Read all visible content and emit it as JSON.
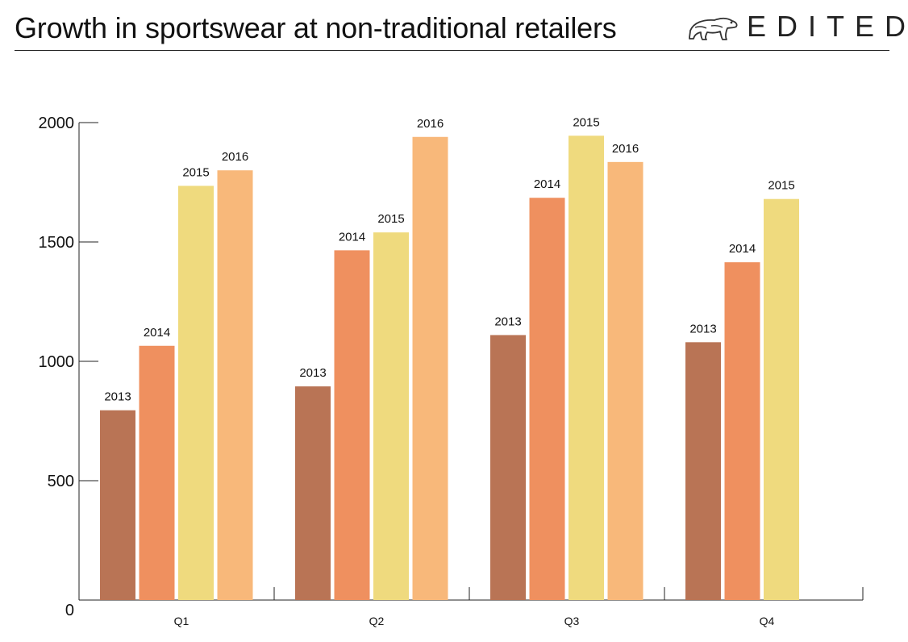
{
  "brand": {
    "name": "EDITED",
    "logo_icon": "polar-bear-icon"
  },
  "colors": {
    "2013": "#b97455",
    "2014": "#ef905f",
    "2015": "#efda7e",
    "2016": "#f8b87a"
  },
  "chart_data": {
    "type": "bar",
    "title": "Growth in sportswear at non-traditional retailers",
    "xlabel": "",
    "ylabel": "",
    "categories": [
      "Q1",
      "Q2",
      "Q3",
      "Q4"
    ],
    "ylim": [
      0,
      2000
    ],
    "yticks": [
      0,
      500,
      1000,
      1500,
      2000
    ],
    "grid": false,
    "legend": "none",
    "series": [
      {
        "name": "2013",
        "values": [
          795,
          895,
          1110,
          1080
        ]
      },
      {
        "name": "2014",
        "values": [
          1065,
          1465,
          1685,
          1415
        ]
      },
      {
        "name": "2015",
        "values": [
          1735,
          1540,
          1945,
          1680
        ]
      },
      {
        "name": "2016",
        "values": [
          1800,
          1940,
          1835,
          null
        ]
      }
    ]
  }
}
